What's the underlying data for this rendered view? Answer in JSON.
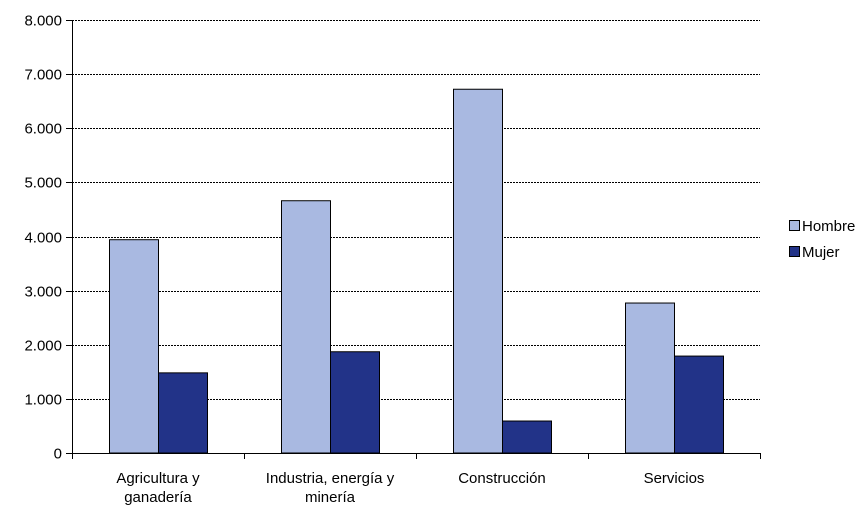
{
  "chart_data": {
    "type": "bar",
    "title": "",
    "xlabel": "",
    "ylabel": "",
    "categories": [
      [
        "Agricultura y",
        "ganadería"
      ],
      [
        "Industria, energía y",
        "minería"
      ],
      [
        "Construcción"
      ],
      [
        "Servicios"
      ]
    ],
    "series": [
      {
        "name": "Hombre",
        "color": "#a9b9e1",
        "values": [
          3950,
          4670,
          6730,
          2780
        ]
      },
      {
        "name": "Mujer",
        "color": "#223388",
        "values": [
          1490,
          1880,
          600,
          1800
        ]
      }
    ],
    "ylim": [
      0,
      8000
    ],
    "yticks": [
      0,
      1000,
      2000,
      3000,
      4000,
      5000,
      6000,
      7000,
      8000
    ],
    "ytick_labels": [
      "0",
      "1.000",
      "2.000",
      "3.000",
      "4.000",
      "5.000",
      "6.000",
      "7.000",
      "8.000"
    ],
    "grid": "dashed horizontal",
    "legend_position": "right"
  }
}
